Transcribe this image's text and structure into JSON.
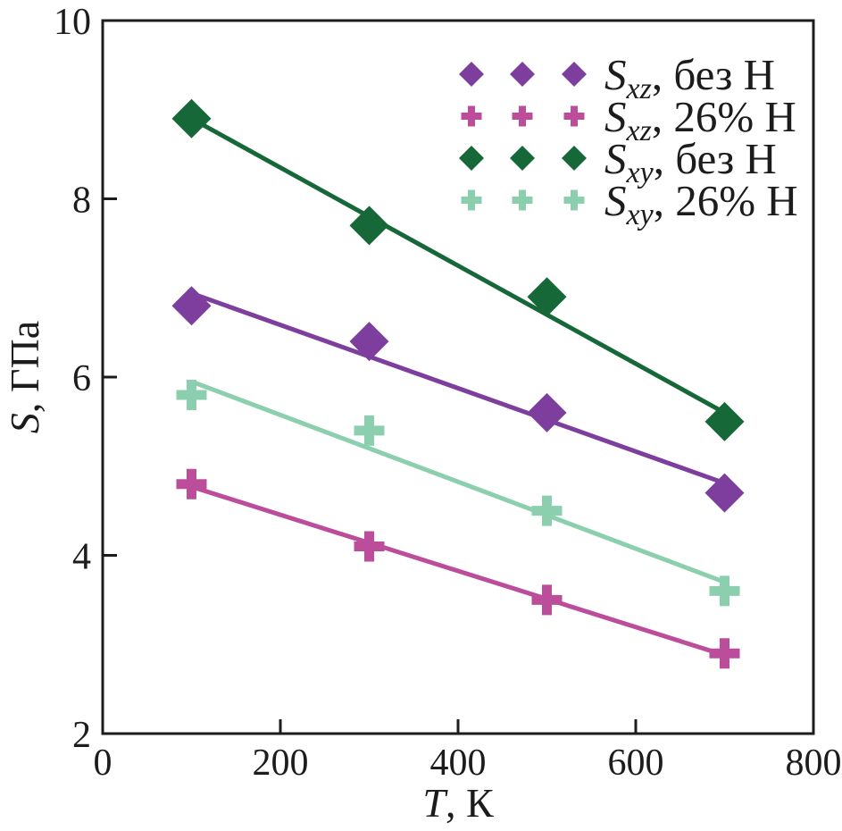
{
  "chart_data": {
    "type": "scatter",
    "x": [
      100,
      300,
      500,
      700
    ],
    "series": [
      {
        "key": "sxz-no-h",
        "symbol": "S",
        "subscript": "xz",
        "suffix": ", без H",
        "marker": "diamond",
        "color": "#7d3e9d",
        "values": [
          6.8,
          6.4,
          5.6,
          4.7
        ]
      },
      {
        "key": "sxz-26-h",
        "symbol": "S",
        "subscript": "xz",
        "suffix": ", 26% H",
        "marker": "plus",
        "color": "#bb4d9b",
        "values": [
          4.8,
          4.1,
          3.5,
          2.9
        ]
      },
      {
        "key": "sxy-no-h",
        "symbol": "S",
        "subscript": "xy",
        "suffix": ", без H",
        "marker": "diamond",
        "color": "#166838",
        "values": [
          8.9,
          7.7,
          6.9,
          5.5
        ]
      },
      {
        "key": "sxy-26-h",
        "symbol": "S",
        "subscript": "xy",
        "suffix": ", 26% H",
        "marker": "plus",
        "color": "#8ccfae",
        "values": [
          5.8,
          5.4,
          4.5,
          3.6
        ]
      }
    ],
    "fit_lines": true,
    "xlabel": {
      "symbol": "T",
      "rest": ", К"
    },
    "ylabel": {
      "symbol": "S",
      "rest": ", ГПа"
    },
    "xlim": [
      0,
      800
    ],
    "ylim": [
      2,
      10
    ],
    "xticks": [
      0,
      200,
      400,
      600,
      800
    ],
    "yticks": [
      2,
      4,
      6,
      8,
      10
    ],
    "grid": false,
    "legend_position": "upper-right",
    "axis_color": "#1c1c1c"
  }
}
